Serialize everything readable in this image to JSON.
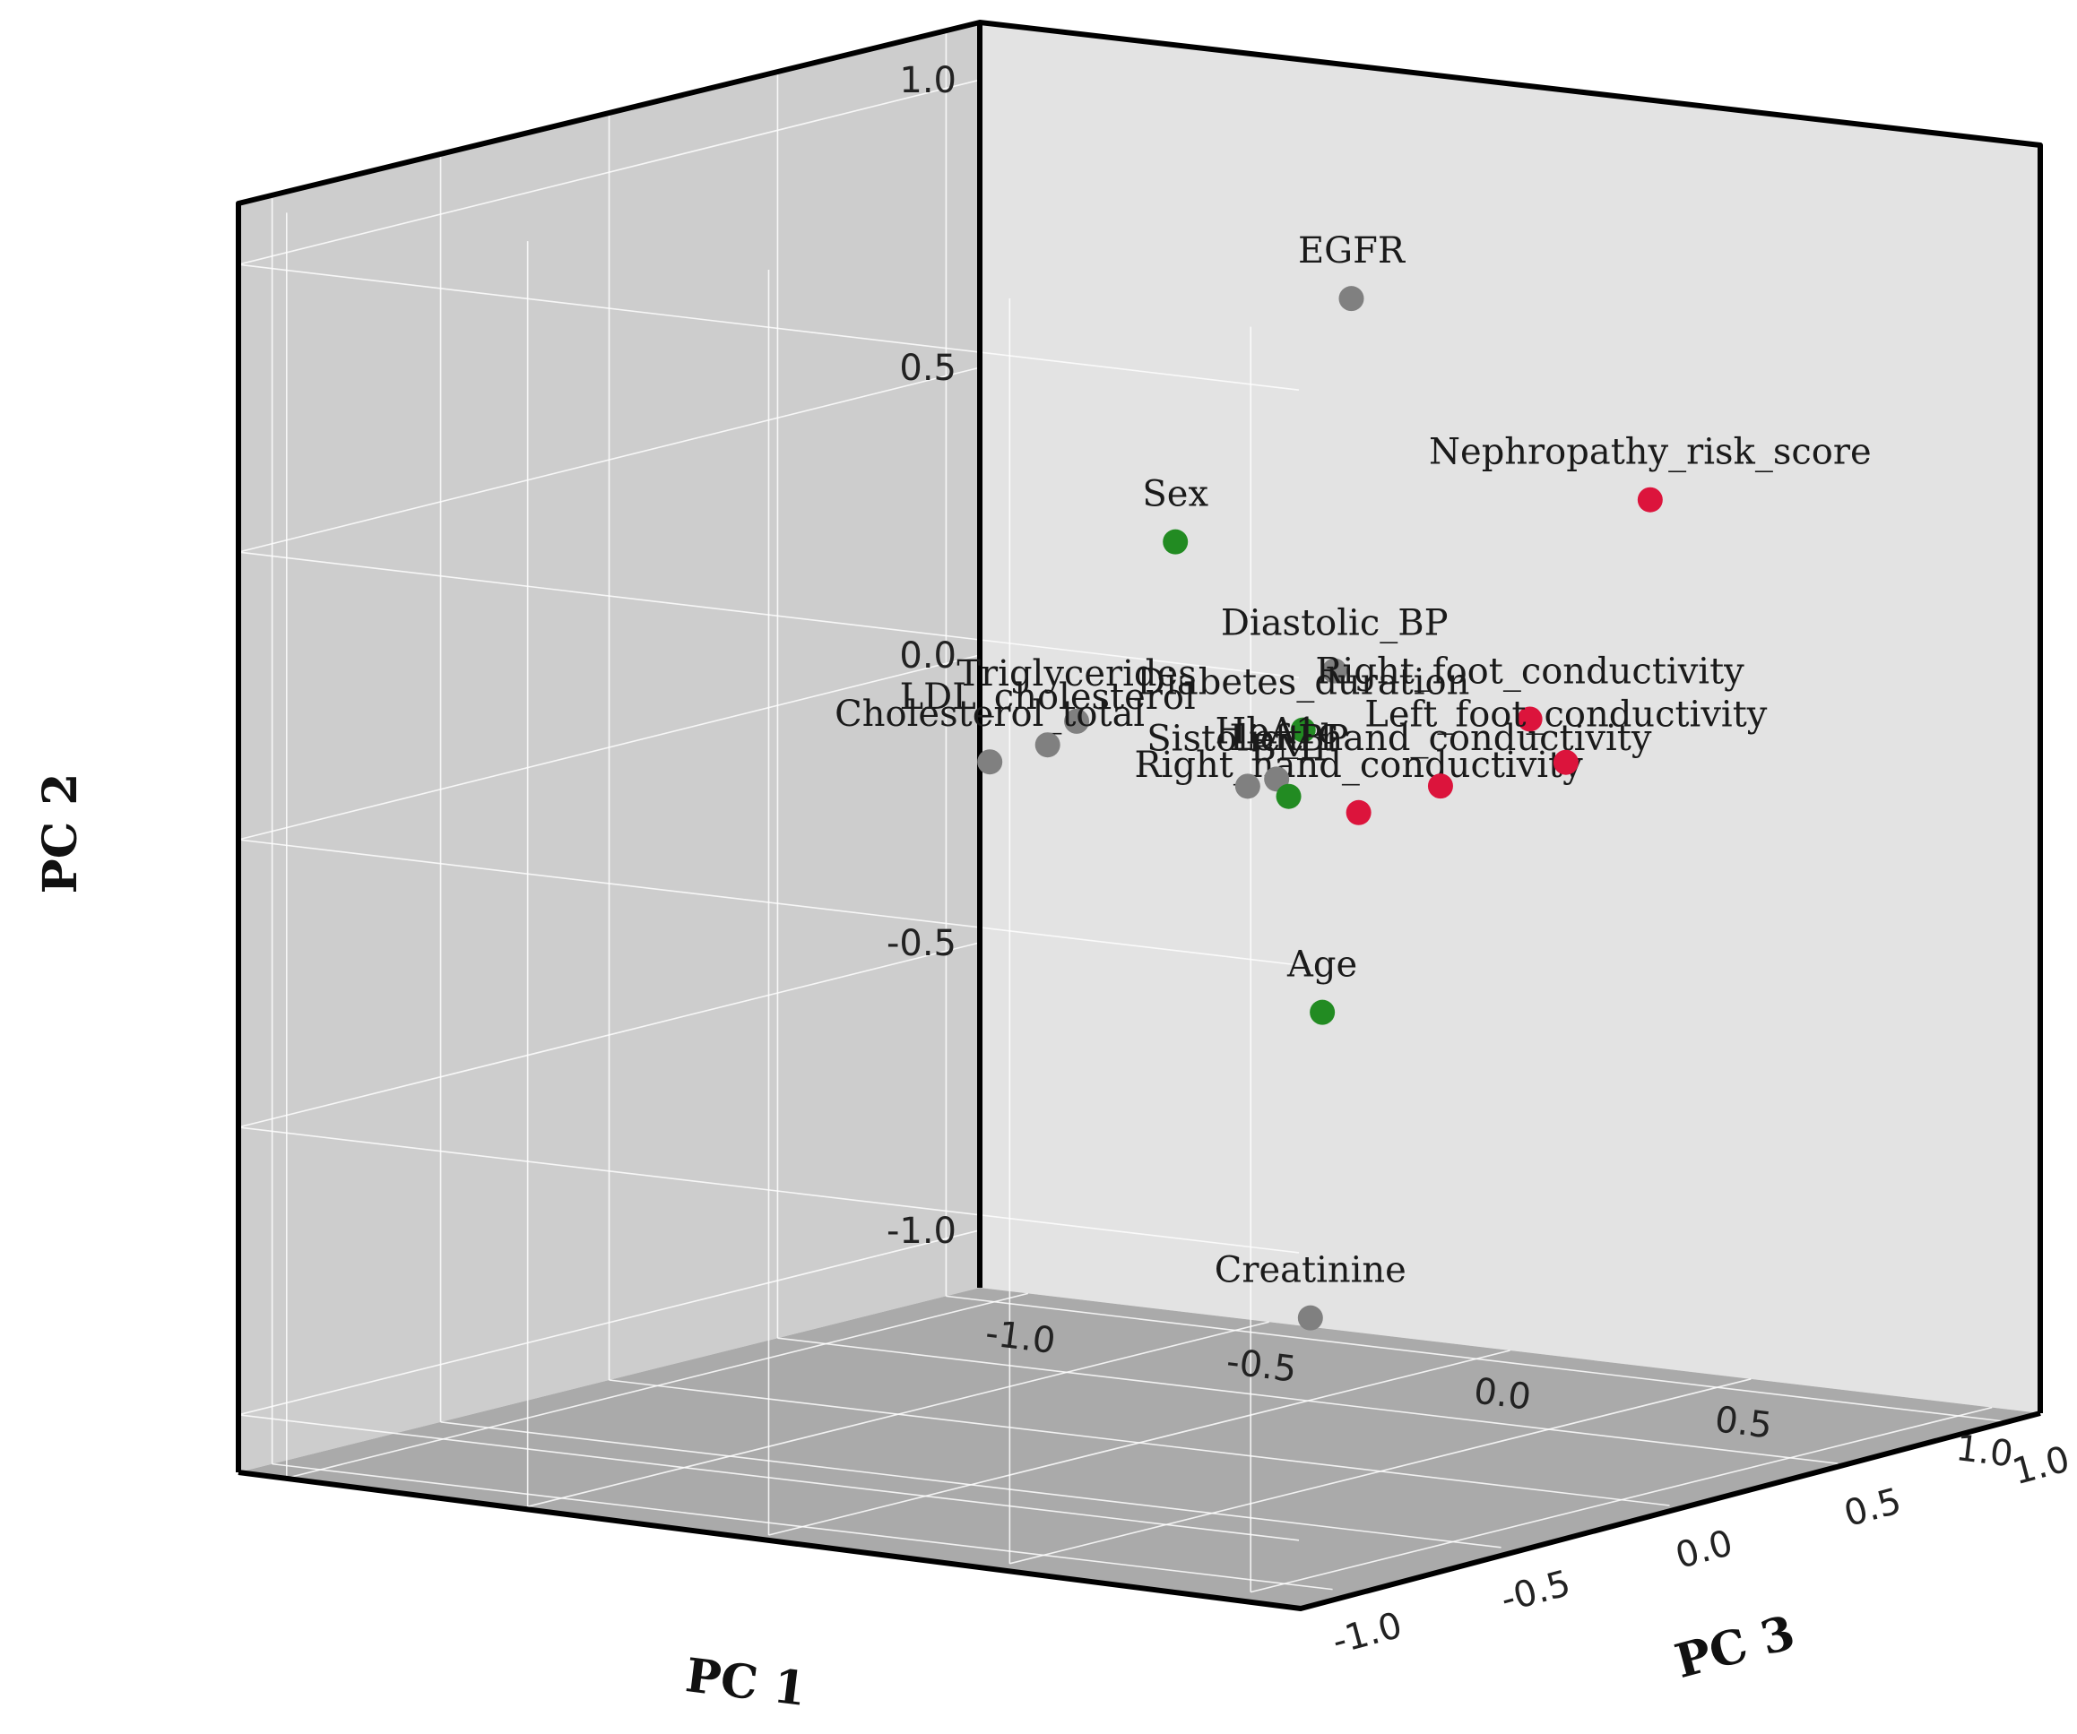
{
  "chart_data": {
    "type": "scatter3d",
    "title": "",
    "xlabel": "PC 1",
    "ylabel": "PC 2",
    "zlabel": "PC 3",
    "xlim": [
      -1.1,
      1.1
    ],
    "ylim": [
      -1.1,
      1.1
    ],
    "zlim": [
      -1.1,
      1.1
    ],
    "x_ticks": [
      "-1.0",
      "-0.5",
      "0.0",
      "0.5",
      "1.0"
    ],
    "y_ticks": [
      "-1.0",
      "-0.5",
      "0.0",
      "0.5",
      "1.0"
    ],
    "z_ticks": [
      "1.0",
      "0.5",
      "0.0",
      "-0.5",
      "-1.0"
    ],
    "colors": {
      "green": "#228b22",
      "gray": "#808080",
      "red": "#dc143c"
    },
    "points": [
      {
        "label": "EGFR",
        "pc1": 0.3,
        "pc2": 0.89,
        "pc3": 0.2,
        "color": "gray"
      },
      {
        "label": "Sex",
        "pc1": -0.1,
        "pc2": 0.42,
        "pc3": 0.25,
        "color": "green"
      },
      {
        "label": "Nephropathy_risk_score",
        "pc1": 0.85,
        "pc2": 0.58,
        "pc3": 0.3,
        "color": "red"
      },
      {
        "label": "Diastolic_BP",
        "pc1": 0.3,
        "pc2": 0.25,
        "pc3": 0.15,
        "color": "gray"
      },
      {
        "label": "Diabetes_duration",
        "pc1": 0.2,
        "pc2": 0.13,
        "pc3": 0.2,
        "color": "green"
      },
      {
        "label": "Right_foot_conductivity",
        "pc1": 0.88,
        "pc2": 0.26,
        "pc3": -0.1,
        "color": "red"
      },
      {
        "label": "Triglycerides",
        "pc1": -0.2,
        "pc2": 0.12,
        "pc3": 0.1,
        "color": "gray"
      },
      {
        "label": "Right_hand_conductivity",
        "pc1": 0.42,
        "pc2": 0.03,
        "pc3": 0.05,
        "color": "red"
      },
      {
        "label": "HbA1c",
        "pc1": 0.18,
        "pc2": 0.05,
        "pc3": 0.15,
        "color": "gray"
      },
      {
        "label": "Cholesterol_total",
        "pc1": -0.45,
        "pc2": 0.01,
        "pc3": 0.2,
        "color": "gray"
      },
      {
        "label": "LDL_cholesterol",
        "pc1": -0.4,
        "pc2": 0.03,
        "pc3": 0.3,
        "color": "gray"
      },
      {
        "label": "Sistolic_BP",
        "pc1": 0.05,
        "pc2": 0.01,
        "pc3": 0.25,
        "color": "gray"
      },
      {
        "label": "BMI",
        "pc1": 0.1,
        "pc2": -0.01,
        "pc3": 0.3,
        "color": "green"
      },
      {
        "label": "Left_hand_conductivity",
        "pc1": 0.45,
        "pc2": 0.05,
        "pc3": 0.25,
        "color": "red"
      },
      {
        "label": "Left_foot_conductivity",
        "pc1": 0.85,
        "pc2": 0.16,
        "pc3": 0.05,
        "color": "red"
      },
      {
        "label": "Age",
        "pc1": 0.1,
        "pc2": -0.4,
        "pc3": 0.4,
        "color": "green"
      },
      {
        "label": "Creatinine",
        "pc1": 0.25,
        "pc2": -0.88,
        "pc3": 0.15,
        "color": "gray"
      }
    ]
  }
}
